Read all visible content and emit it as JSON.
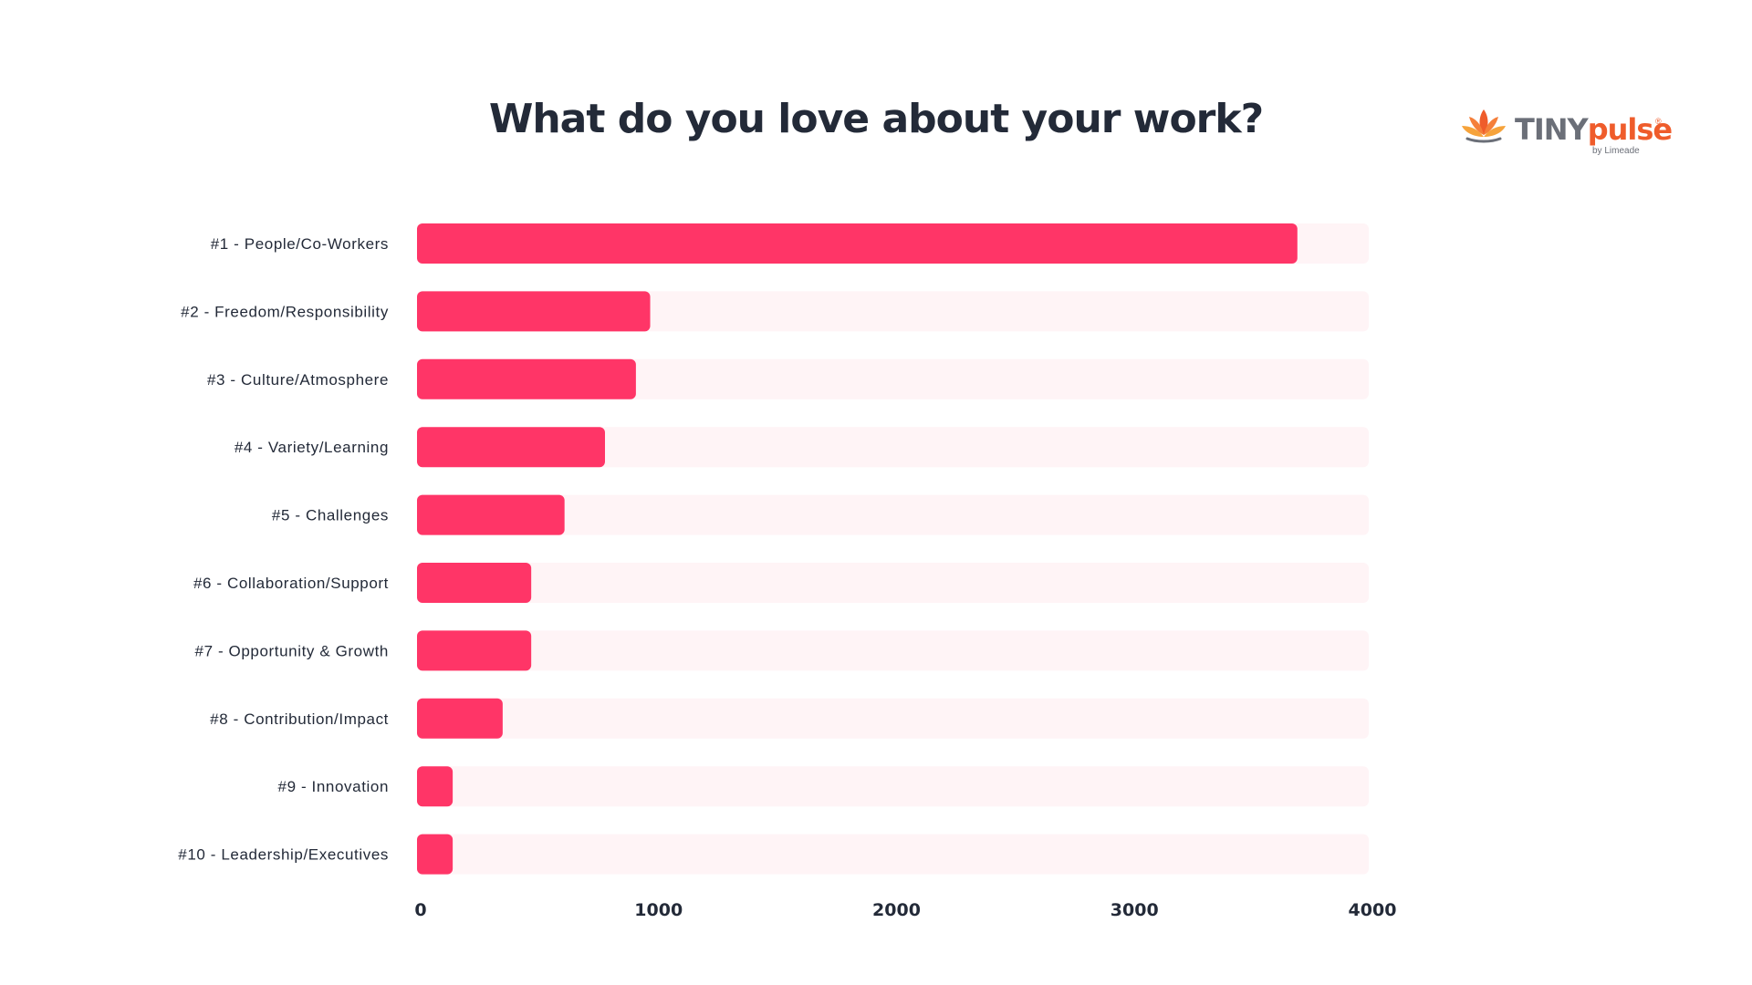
{
  "header": {
    "title": "What do you love about your work?"
  },
  "logo": {
    "brand_part1": "TINY",
    "brand_part2": "pulse",
    "registered": "®",
    "byline": "by Limeade",
    "icon": "lotus-icon"
  },
  "colors": {
    "bar": "#ff3567",
    "track": "#fff4f6",
    "text": "#232a38",
    "brand_orange": "#ef5c2b",
    "brand_gray": "#6b6f78"
  },
  "chart_data": {
    "type": "bar",
    "orientation": "horizontal",
    "title": "What do you love about your work?",
    "xlabel": "",
    "ylabel": "",
    "categories": [
      "#1 - People/Co-Workers",
      "#2 - Freedom/Responsibility",
      "#3 - Culture/Atmosphere",
      "#4 - Variety/Learning",
      "#5 - Challenges",
      "#6 - Collaboration/Support",
      "#7 - Opportunity & Growth",
      "#8 - Contribution/Impact",
      "#9 - Innovation",
      "#10 - Leadership/Executives"
    ],
    "values": [
      3700,
      980,
      920,
      790,
      620,
      480,
      480,
      360,
      150,
      150
    ],
    "xlim": [
      0,
      4000
    ],
    "xticks": [
      "0",
      "1000",
      "2000",
      "3000",
      "4000"
    ],
    "grid": false,
    "legend": "none"
  }
}
